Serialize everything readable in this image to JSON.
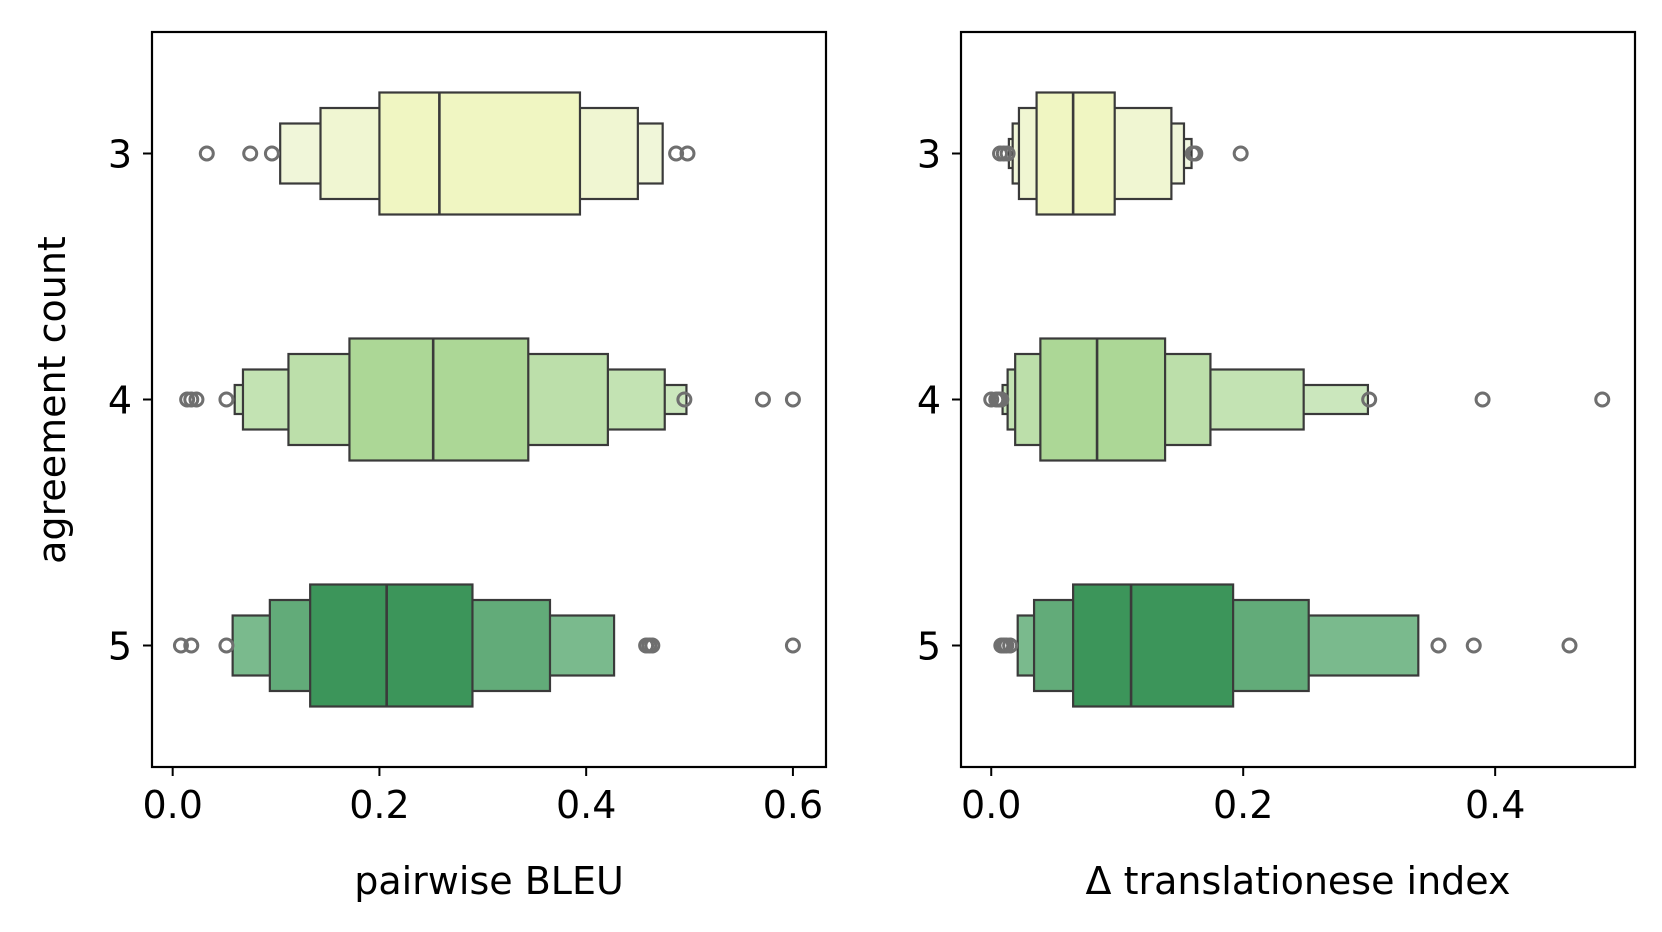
{
  "chart_data": [
    {
      "type": "boxen",
      "orientation": "horizontal",
      "xlabel": "pairwise BLEU",
      "ylabel": "agreement count",
      "xlim": [
        -0.02,
        0.632
      ],
      "xticks": [
        0.0,
        0.2,
        0.4,
        0.6
      ],
      "xtick_labels": [
        "0.0",
        "0.2",
        "0.4",
        "0.6"
      ],
      "categories": [
        "3",
        "4",
        "5"
      ],
      "grid": false,
      "series": [
        {
          "category": "3",
          "median": 0.258,
          "boxes": [
            [
              0.2,
              0.394
            ],
            [
              0.143,
              0.45
            ],
            [
              0.104,
              0.474
            ]
          ],
          "outliers": [
            0.033,
            0.075,
            0.096,
            0.487,
            0.498
          ]
        },
        {
          "category": "4",
          "median": 0.252,
          "boxes": [
            [
              0.171,
              0.344
            ],
            [
              0.112,
              0.421
            ],
            [
              0.068,
              0.476
            ],
            [
              0.06,
              0.497
            ]
          ],
          "outliers": [
            0.014,
            0.018,
            0.023,
            0.052,
            0.495,
            0.571,
            0.6
          ]
        },
        {
          "category": "5",
          "median": 0.207,
          "boxes": [
            [
              0.133,
              0.29
            ],
            [
              0.094,
              0.365
            ],
            [
              0.058,
              0.427
            ]
          ],
          "outliers": [
            0.008,
            0.018,
            0.052,
            0.458,
            0.461,
            0.464,
            0.6
          ]
        }
      ]
    },
    {
      "type": "boxen",
      "orientation": "horizontal",
      "xlabel": "Δ translationese index",
      "ylabel": "",
      "xlim": [
        -0.024,
        0.511
      ],
      "xticks": [
        0.0,
        0.2,
        0.4
      ],
      "xtick_labels": [
        "0.0",
        "0.2",
        "0.4"
      ],
      "categories": [
        "3",
        "4",
        "5"
      ],
      "grid": false,
      "series": [
        {
          "category": "3",
          "median": 0.065,
          "boxes": [
            [
              0.036,
              0.098
            ],
            [
              0.022,
              0.143
            ],
            [
              0.017,
              0.153
            ],
            [
              0.014,
              0.159
            ]
          ],
          "outliers": [
            0.007,
            0.01,
            0.013,
            0.16,
            0.162,
            0.198
          ]
        },
        {
          "category": "4",
          "median": 0.084,
          "boxes": [
            [
              0.039,
              0.138
            ],
            [
              0.019,
              0.174
            ],
            [
              0.013,
              0.248
            ],
            [
              0.009,
              0.299
            ]
          ],
          "outliers": [
            0.0,
            0.004,
            0.006,
            0.008,
            0.3,
            0.39,
            0.485
          ]
        },
        {
          "category": "5",
          "median": 0.111,
          "boxes": [
            [
              0.065,
              0.192
            ],
            [
              0.034,
              0.252
            ],
            [
              0.021,
              0.339
            ]
          ],
          "outliers": [
            0.008,
            0.01,
            0.012,
            0.015,
            0.355,
            0.383,
            0.459
          ]
        }
      ]
    }
  ],
  "colors": {
    "3": [
      "#f0f6c2",
      "#f0f6d2",
      "#f0f6d9",
      "#f0f6e0"
    ],
    "4": [
      "#acd796",
      "#bcdfaa",
      "#c3e3b3",
      "#cbe7bd"
    ],
    "5": [
      "#3c955a",
      "#62ab79",
      "#7aba8d",
      "#92c8a1"
    ],
    "box_edge": "#3a3a3a",
    "outlier": "#6f6f6f",
    "axes": "#000000"
  }
}
